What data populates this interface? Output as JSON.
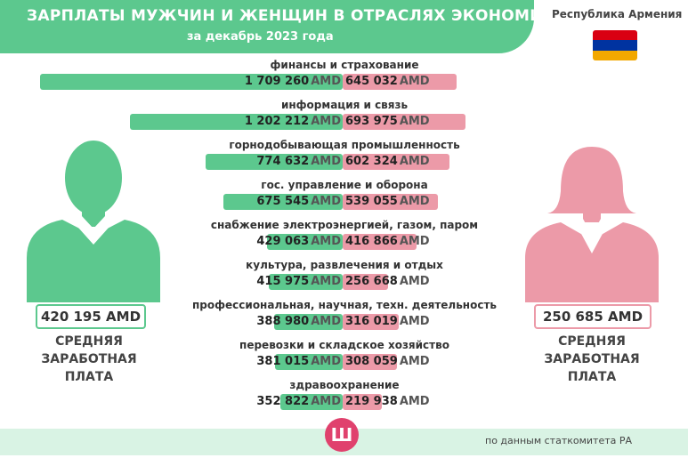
{
  "header": {
    "title": "ЗАРПЛАТЫ МУЖЧИН И ЖЕНЩИН В ОТРАСЛЯХ ЭКОНОМИКИ",
    "subtitle": "за декабрь 2023 года",
    "country": "Республика Армения"
  },
  "colors": {
    "male": "#5cc88e",
    "female": "#ec9aa8",
    "accent": "#e0416d"
  },
  "flag_colors": [
    "#d90012",
    "#0033a0",
    "#f2a800"
  ],
  "men": {
    "average": "420 195",
    "unit": "AMD",
    "label": "СРЕДНЯЯ\nЗАРАБОТНАЯ\nПЛАТА",
    "icon": "man-silhouette-icon"
  },
  "women": {
    "average": "250 685",
    "unit": "AMD",
    "label": "СРЕДНЯЯ\nЗАРАБОТНАЯ\nПЛАТА",
    "icon": "woman-silhouette-icon"
  },
  "footer": {
    "source": "по данным статкомитета РА",
    "logo_text": "Ш"
  },
  "chart_data": {
    "type": "bar",
    "orientation": "horizontal-diverging",
    "unit": "AMD",
    "categories": [
      "финансы и страхование",
      "информация и связь",
      "горнодобывающая промышленность",
      "гос. управление и оборона",
      "снабжение электроэнергией, газом, паром",
      "культура, развлечения и отдых",
      "профессиональная, научная, техн. деятельность",
      "перевозки и складское хозяйство",
      "здравоохранение"
    ],
    "series": [
      {
        "name": "мужчины",
        "values": [
          1709260,
          1202212,
          774632,
          675545,
          429063,
          415975,
          388980,
          381015,
          352822
        ]
      },
      {
        "name": "женщины",
        "values": [
          645032,
          693975,
          602324,
          539055,
          416866,
          256668,
          316019,
          308059,
          219938
        ]
      }
    ],
    "value_labels": {
      "male": [
        "1 709 260",
        "1 202 212",
        "774 632",
        "675 545",
        "429 063",
        "415 975",
        "388 980",
        "381 015",
        "352 822"
      ],
      "female": [
        "645 032",
        "693 975",
        "602 324",
        "539 055",
        "416 866",
        "256 668",
        "316 019",
        "308 059",
        "219 938"
      ]
    }
  }
}
